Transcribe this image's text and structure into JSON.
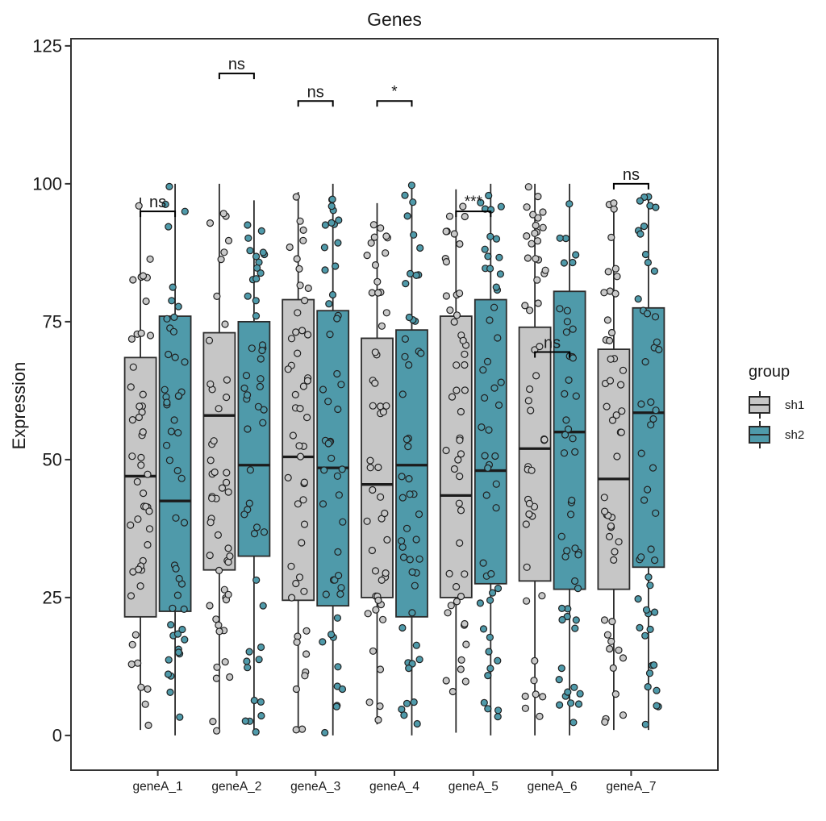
{
  "title": "Genes",
  "y_axis_label": "Expression",
  "legend": {
    "title": "group",
    "items": [
      {
        "label": "sh1",
        "color": "#c6c6c6"
      },
      {
        "label": "sh2",
        "color": "#4f9aaa"
      }
    ]
  },
  "chart_data": {
    "type": "boxplot",
    "title": "Genes",
    "xlabel": "",
    "ylabel": "Expression",
    "categories": [
      "geneA_1",
      "geneA_2",
      "geneA_3",
      "geneA_4",
      "geneA_5",
      "geneA_6",
      "geneA_7"
    ],
    "groups": [
      "sh1",
      "sh2"
    ],
    "group_colors": {
      "sh1": "#c6c6c6",
      "sh2": "#4f9aaa"
    },
    "point_colors": {
      "sh1": "#c9c9c9",
      "sh2": "#4f9aaa"
    },
    "ylim": [
      0,
      125
    ],
    "yticks": [
      0,
      25,
      50,
      75,
      100,
      125
    ],
    "grid": false,
    "legend_position": "right",
    "boxes": [
      {
        "gene": "geneA_1",
        "group": "sh1",
        "whisker_low": 1,
        "q1": 21.5,
        "median": 47,
        "q3": 68.5,
        "whisker_high": 97.5
      },
      {
        "gene": "geneA_1",
        "group": "sh2",
        "whisker_low": 0,
        "q1": 22.5,
        "median": 42.5,
        "q3": 76,
        "whisker_high": 100
      },
      {
        "gene": "geneA_2",
        "group": "sh1",
        "whisker_low": 0.5,
        "q1": 30,
        "median": 58,
        "q3": 73,
        "whisker_high": 100
      },
      {
        "gene": "geneA_2",
        "group": "sh2",
        "whisker_low": 0,
        "q1": 32.5,
        "median": 49,
        "q3": 75,
        "whisker_high": 97
      },
      {
        "gene": "geneA_3",
        "group": "sh1",
        "whisker_low": 0.5,
        "q1": 24.5,
        "median": 50.5,
        "q3": 79,
        "whisker_high": 98.5
      },
      {
        "gene": "geneA_3",
        "group": "sh2",
        "whisker_low": 0,
        "q1": 23.5,
        "median": 48.5,
        "q3": 77,
        "whisker_high": 100
      },
      {
        "gene": "geneA_4",
        "group": "sh1",
        "whisker_low": 2,
        "q1": 25,
        "median": 45.5,
        "q3": 72,
        "whisker_high": 96.5
      },
      {
        "gene": "geneA_4",
        "group": "sh2",
        "whisker_low": 0,
        "q1": 21.5,
        "median": 49,
        "q3": 73.5,
        "whisker_high": 100
      },
      {
        "gene": "geneA_5",
        "group": "sh1",
        "whisker_low": 0.5,
        "q1": 25,
        "median": 43.5,
        "q3": 76,
        "whisker_high": 99
      },
      {
        "gene": "geneA_5",
        "group": "sh2",
        "whisker_low": 0,
        "q1": 27.5,
        "median": 48,
        "q3": 79,
        "whisker_high": 100
      },
      {
        "gene": "geneA_6",
        "group": "sh1",
        "whisker_low": 0,
        "q1": 28,
        "median": 52,
        "q3": 74,
        "whisker_high": 100
      },
      {
        "gene": "geneA_6",
        "group": "sh2",
        "whisker_low": 0,
        "q1": 26.5,
        "median": 55,
        "q3": 80.5,
        "whisker_high": 100
      },
      {
        "gene": "geneA_7",
        "group": "sh1",
        "whisker_low": 1,
        "q1": 26.5,
        "median": 46.5,
        "q3": 70,
        "whisker_high": 97
      },
      {
        "gene": "geneA_7",
        "group": "sh2",
        "whisker_low": 1,
        "q1": 30.5,
        "median": 58.5,
        "q3": 77.5,
        "whisker_high": 98
      }
    ],
    "significance": [
      {
        "gene": "geneA_1",
        "label": "ns",
        "y": 95
      },
      {
        "gene": "geneA_2",
        "label": "ns",
        "y": 120
      },
      {
        "gene": "geneA_3",
        "label": "ns",
        "y": 115
      },
      {
        "gene": "geneA_4",
        "label": "*",
        "y": 115
      },
      {
        "gene": "geneA_5",
        "label": "***",
        "y": 95
      },
      {
        "gene": "geneA_6",
        "label": "ns",
        "y": 69.5
      },
      {
        "gene": "geneA_7",
        "label": "ns",
        "y": 100
      }
    ],
    "jitter_points": {
      "per_box": 50,
      "seed": 11,
      "distribution": "uniform-within-whiskers"
    }
  }
}
